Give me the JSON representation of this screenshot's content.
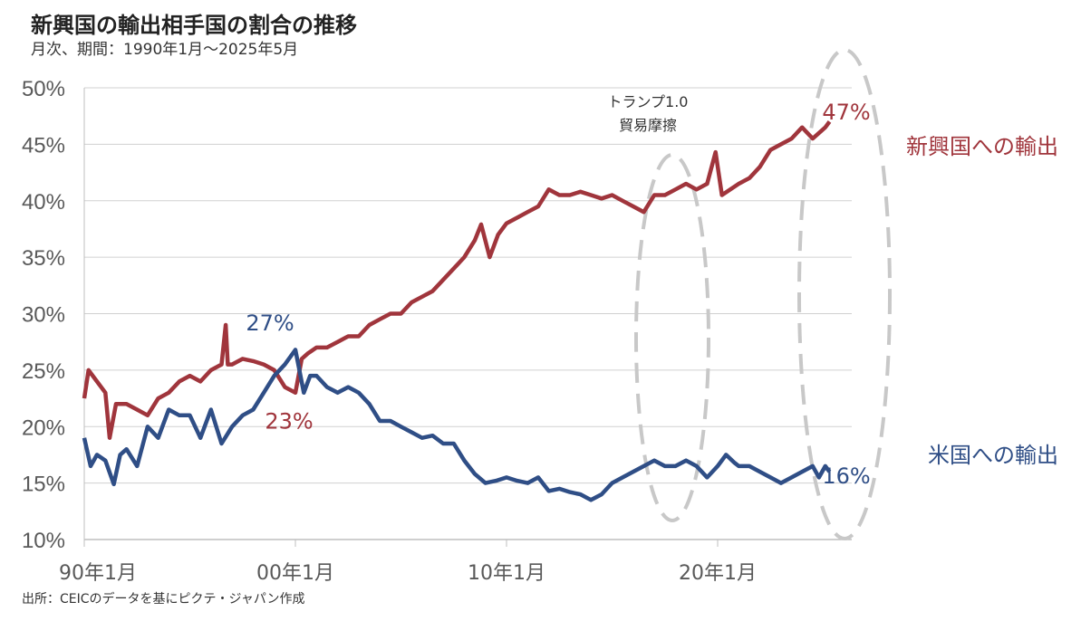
{
  "chart_data": {
    "type": "line",
    "title": "新興国の輸出相手国の割合の推移",
    "subtitle": "月次、期間：1990年1月～2025年5月",
    "source": "出所：CEICのデータを基にピクテ・ジャパン作成",
    "xlabel": "",
    "ylabel": "",
    "xlim": [
      1990,
      2025.4
    ],
    "ylim": [
      10,
      50
    ],
    "grid": true,
    "y_ticks": [
      "10%",
      "15%",
      "20%",
      "25%",
      "30%",
      "35%",
      "40%",
      "45%",
      "50%"
    ],
    "y_tick_values": [
      10,
      15,
      20,
      25,
      30,
      35,
      40,
      45,
      50
    ],
    "x_ticks": [
      "90年1月",
      "00年1月",
      "10年1月",
      "20年1月"
    ],
    "x_tick_values": [
      1990,
      2000,
      2010,
      2020
    ],
    "series": [
      {
        "name": "新興国への輸出",
        "color": "#a0353c",
        "end_label": "47%",
        "x": [
          1990,
          1990.2,
          1990.6,
          1991,
          1991.2,
          1991.5,
          1992,
          1992.5,
          1993,
          1993.5,
          1994,
          1994.5,
          1995,
          1995.5,
          1996,
          1996.5,
          1996.7,
          1996.8,
          1997,
          1997.5,
          1998,
          1998.5,
          1999,
          1999.5,
          2000,
          2000.3,
          2000.6,
          2001,
          2001.5,
          2002,
          2002.5,
          2003,
          2003.5,
          2004,
          2004.5,
          2005,
          2005.5,
          2006,
          2006.5,
          2007,
          2007.5,
          2008,
          2008.5,
          2008.8,
          2009.2,
          2009.6,
          2010,
          2010.5,
          2011,
          2011.5,
          2012,
          2012.5,
          2013,
          2013.5,
          2014,
          2014.5,
          2015,
          2015.5,
          2016,
          2016.5,
          2017,
          2017.5,
          2018,
          2018.5,
          2019,
          2019.5,
          2019.9,
          2020.2,
          2020.6,
          2021,
          2021.5,
          2022,
          2022.5,
          2023,
          2023.5,
          2024,
          2024.5,
          2024.8,
          2025.1,
          2025.3
        ],
        "values": [
          22.5,
          25,
          24,
          23,
          19,
          22,
          22,
          21.5,
          21,
          22.5,
          23,
          24,
          24.5,
          24,
          25,
          25.5,
          29,
          25.5,
          25.5,
          26,
          25.8,
          25.5,
          25,
          23.5,
          23,
          26,
          26.5,
          27,
          27,
          27.5,
          28,
          28,
          29,
          29.5,
          30,
          30,
          31,
          31.5,
          32,
          33,
          34,
          35,
          36.5,
          37.9,
          35,
          37,
          38,
          38.5,
          39,
          39.5,
          41,
          40.5,
          40.5,
          40.8,
          40.5,
          40.2,
          40.5,
          40,
          39.5,
          39,
          40.5,
          40.5,
          41,
          41.5,
          41,
          41.5,
          44.3,
          40.5,
          41,
          41.5,
          42,
          43,
          44.5,
          45,
          45.5,
          46.5,
          45.5,
          46,
          46.5,
          47
        ]
      },
      {
        "name": "米国への輸出",
        "color": "#2f4e86",
        "end_label": "16%",
        "x": [
          1990,
          1990.3,
          1990.6,
          1991,
          1991.4,
          1991.7,
          1992,
          1992.5,
          1993,
          1993.5,
          1994,
          1994.5,
          1995,
          1995.5,
          1996,
          1996.5,
          1997,
          1997.5,
          1998,
          1998.5,
          1999,
          1999.5,
          2000,
          2000.4,
          2000.7,
          2001,
          2001.5,
          2002,
          2002.5,
          2003,
          2003.5,
          2004,
          2004.5,
          2005,
          2005.5,
          2006,
          2006.5,
          2007,
          2007.5,
          2008,
          2008.5,
          2009,
          2009.5,
          2010,
          2010.5,
          2011,
          2011.5,
          2012,
          2012.5,
          2013,
          2013.5,
          2014,
          2014.5,
          2015,
          2015.5,
          2016,
          2016.5,
          2017,
          2017.5,
          2018,
          2018.5,
          2019,
          2019.5,
          2020,
          2020.4,
          2020.8,
          2021,
          2021.5,
          2022,
          2022.5,
          2023,
          2023.5,
          2024,
          2024.5,
          2024.8,
          2025.1,
          2025.3
        ],
        "values": [
          19,
          16.5,
          17.5,
          17,
          14.9,
          17.5,
          18,
          16.5,
          20,
          19,
          21.5,
          21,
          21,
          19,
          21.5,
          18.5,
          20,
          21,
          21.5,
          23,
          24.5,
          25.5,
          26.8,
          23,
          24.5,
          24.5,
          23.5,
          23,
          23.5,
          23,
          22,
          20.5,
          20.5,
          20,
          19.5,
          19,
          19.2,
          18.5,
          18.5,
          17,
          15.8,
          15,
          15.2,
          15.5,
          15.2,
          15,
          15.5,
          14.3,
          14.5,
          14.2,
          14,
          13.5,
          14,
          15,
          15.5,
          16,
          16.5,
          17,
          16.5,
          16.5,
          17,
          16.5,
          15.5,
          16.5,
          17.5,
          16.8,
          16.5,
          16.5,
          16,
          15.5,
          15,
          15.5,
          16,
          16.5,
          15.5,
          16.5,
          16
        ]
      }
    ],
    "annotations": [
      {
        "text": "27%",
        "color": "#2f4e86",
        "x": 1998.8,
        "y": 28.5
      },
      {
        "text": "23%",
        "color": "#a0353c",
        "x": 1999.7,
        "y": 19.8
      },
      {
        "text_lines": [
          "トランプ1.0",
          "貿易摩擦"
        ],
        "highlight_period": [
          2016.5,
          2019.5
        ]
      },
      {
        "highlight_period": [
          2023.5,
          2026.2
        ]
      }
    ]
  }
}
